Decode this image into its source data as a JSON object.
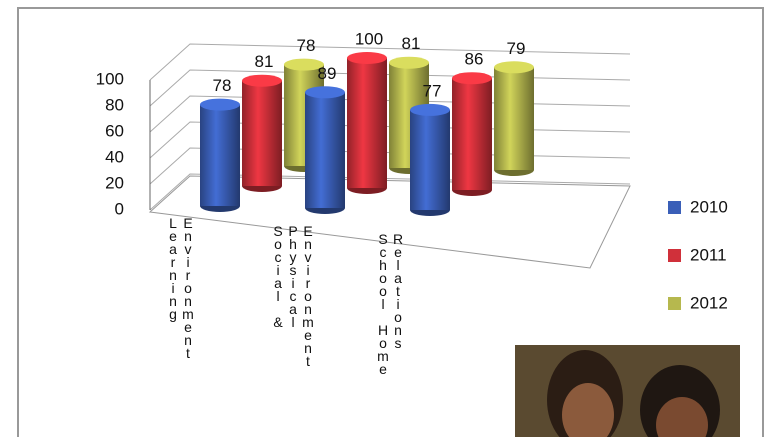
{
  "chart_data": {
    "type": "bar3d",
    "categories": [
      "Learning Environment",
      "Social & Physical Environment",
      "School Home Relations"
    ],
    "series": [
      {
        "name": "2010",
        "color": "#3a5fb8",
        "values": [
          78,
          89,
          77
        ]
      },
      {
        "name": "2011",
        "color": "#d0303a",
        "values": [
          81,
          100,
          86
        ]
      },
      {
        "name": "2012",
        "color": "#b6b84e",
        "values": [
          78,
          81,
          79
        ]
      }
    ],
    "ylim": [
      0,
      100
    ],
    "yticks": [
      0,
      20,
      40,
      60,
      80,
      100
    ],
    "grid": true,
    "legend": "right"
  }
}
